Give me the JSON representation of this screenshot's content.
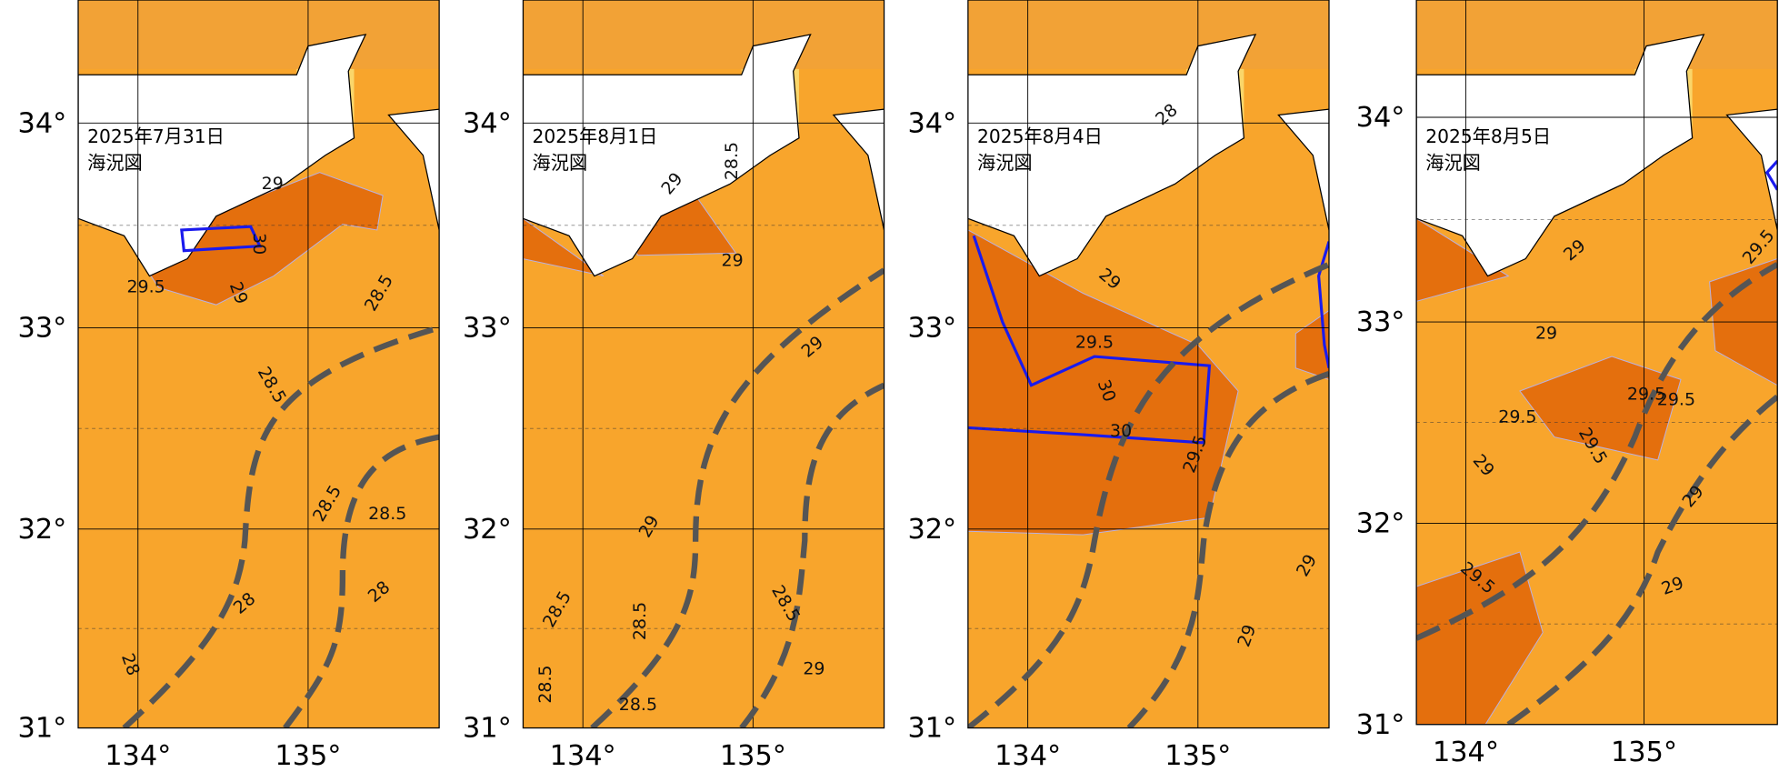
{
  "panels": [
    {
      "date": "2025年7月31日",
      "title": "海況図",
      "lat_labels": [
        "34°",
        "33°",
        "32°",
        "31°"
      ],
      "lon_labels": [
        "134°",
        "135°"
      ],
      "contour_labels": [
        "29",
        "29.5",
        "29",
        "28.5",
        "28.5",
        "28.5",
        "28.5",
        "28",
        "28",
        "28",
        "30"
      ]
    },
    {
      "date": "2025年8月1日",
      "title": "海況図",
      "lat_labels": [
        "34°",
        "33°",
        "32°",
        "31°"
      ],
      "lon_labels": [
        "134°",
        "135°"
      ],
      "contour_labels": [
        "29",
        "29",
        "29",
        "28.5",
        "28.5",
        "28.5",
        "28.5",
        "28.5",
        "29",
        "28.5",
        "29"
      ]
    },
    {
      "date": "2025年8月4日",
      "title": "海況図",
      "lat_labels": [
        "34°",
        "33°",
        "32°",
        "31°"
      ],
      "lon_labels": [
        "134°",
        "135°"
      ],
      "contour_labels": [
        "28",
        "29",
        "29.5",
        "30",
        "30",
        "29.5",
        "29",
        "29"
      ]
    },
    {
      "date": "2025年8月5日",
      "title": "海況図",
      "lat_labels": [
        "34°",
        "33°",
        "32°",
        "31°"
      ],
      "lon_labels": [
        "134°",
        "135°"
      ],
      "contour_labels": [
        "29",
        "29",
        "29.5",
        "29",
        "29.5",
        "29.5",
        "29.5",
        "29",
        "29.5",
        "29",
        "29.5"
      ]
    }
  ]
}
